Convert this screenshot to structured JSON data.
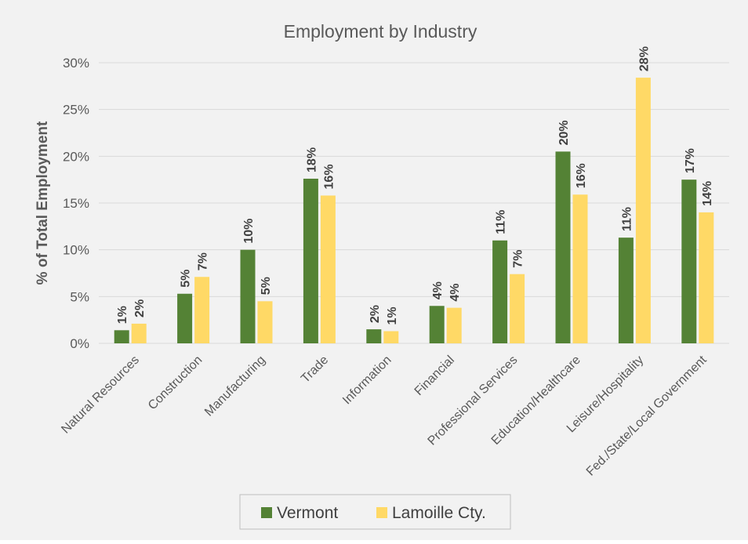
{
  "chart_data": {
    "type": "bar",
    "title": "Employment by Industry",
    "xlabel": "",
    "ylabel": "% of Total Employment",
    "ylim": [
      0,
      30
    ],
    "yticks": [
      "0%",
      "5%",
      "10%",
      "15%",
      "20%",
      "25%",
      "30%"
    ],
    "grid": true,
    "legend_position": "bottom",
    "categories": [
      "Natural Resources",
      "Construction",
      "Manufacturing",
      "Trade",
      "Information",
      "Financial",
      "Professional Services",
      "Education/Healthcare",
      "Leisure/Hospitality",
      "Fed./State/Local Government"
    ],
    "series": [
      {
        "name": "Vermont",
        "color": "#548235",
        "values": [
          1.4,
          5.3,
          10.0,
          17.6,
          1.5,
          4.0,
          11.0,
          20.5,
          11.3,
          17.5
        ],
        "labels": [
          "1%",
          "5%",
          "10%",
          "18%",
          "2%",
          "4%",
          "11%",
          "20%",
          "11%",
          "17%"
        ]
      },
      {
        "name": "Lamoille Cty.",
        "color": "#FFD966",
        "values": [
          2.1,
          7.1,
          4.5,
          15.8,
          1.3,
          3.8,
          7.4,
          15.9,
          28.4,
          14.0
        ],
        "labels": [
          "2%",
          "7%",
          "5%",
          "16%",
          "1%",
          "4%",
          "7%",
          "16%",
          "28%",
          "14%"
        ]
      }
    ]
  },
  "colors": {
    "background": "#f2f2f2",
    "grid": "#d9d9d9",
    "text": "#595959",
    "legend_border": "#bfbfbf"
  }
}
